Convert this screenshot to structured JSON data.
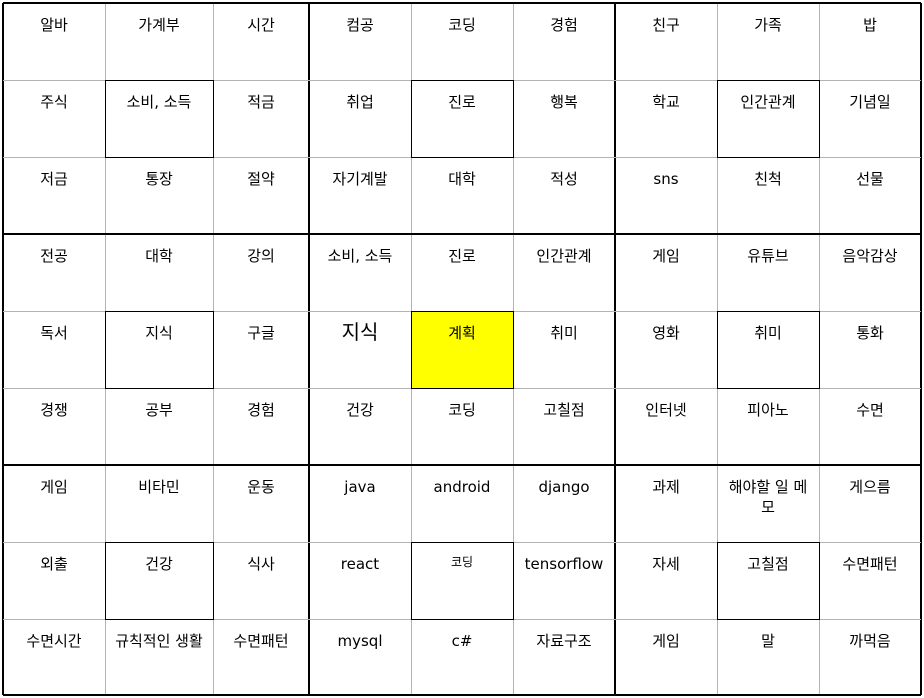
{
  "highlight_color": "#ffff00",
  "rows": [
    [
      "알바",
      "가계부",
      "시간",
      "컴공",
      "코딩",
      "경험",
      "친구",
      "가족",
      "밥"
    ],
    [
      "주식",
      "소비, 소득",
      "적금",
      "취업",
      "진로",
      "행복",
      "학교",
      "인간관계",
      "기념일"
    ],
    [
      "저금",
      "통장",
      "절약",
      "자기계발",
      "대학",
      "적성",
      "sns",
      "친척",
      "선물"
    ],
    [
      "전공",
      "대학",
      "강의",
      "소비, 소득",
      "진로",
      "인간관계",
      "게임",
      "유튜브",
      "음악감상"
    ],
    [
      "독서",
      "지식",
      "구글",
      "지식",
      "계획",
      "취미",
      "영화",
      "취미",
      "통화"
    ],
    [
      "경쟁",
      "공부",
      "경험",
      "건강",
      "코딩",
      "고칠점",
      "인터넷",
      "피아노",
      "수면"
    ],
    [
      "게임",
      "비타민",
      "운동",
      "java",
      "android",
      "django",
      "과제",
      "해야할 일 메모",
      "게으름"
    ],
    [
      "외출",
      "건강",
      "식사",
      "react",
      "코딩",
      "tensorflow",
      "자세",
      "고칠점",
      "수면패턴"
    ],
    [
      "수면시간",
      "규칙적인 생활",
      "수면패턴",
      "mysql",
      "c#",
      "자료구조",
      "게임",
      "말",
      "까먹음"
    ]
  ]
}
